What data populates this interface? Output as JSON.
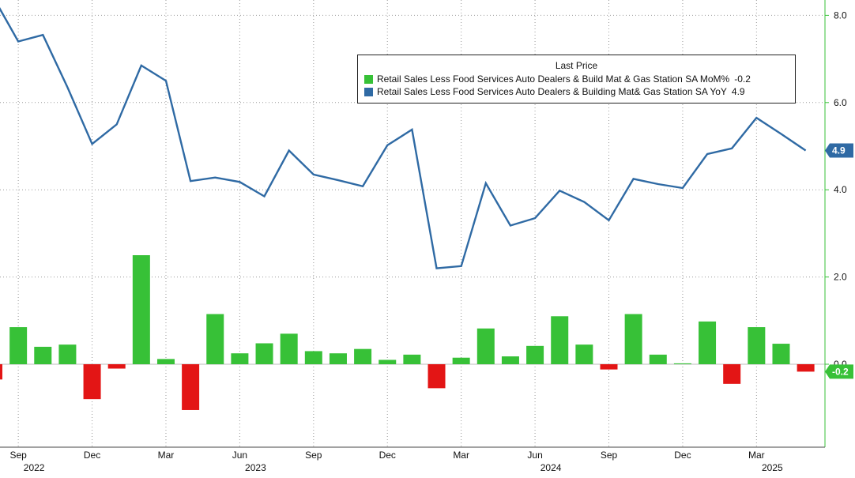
{
  "chart_data": {
    "type": "bar+line",
    "legend_title": "Last Price",
    "legend_placement": "top-right",
    "grid": "dotted",
    "ylim": [
      -1.8,
      8.3
    ],
    "yticks": [
      "8.0",
      "6.0",
      "4.0",
      "2.0",
      "0.0"
    ],
    "ytick_values": [
      8,
      6,
      4,
      2,
      0
    ],
    "x_month_ticks": [
      {
        "index": 1,
        "label": "Sep"
      },
      {
        "index": 4,
        "label": "Dec"
      },
      {
        "index": 7,
        "label": "Mar"
      },
      {
        "index": 10,
        "label": "Jun"
      },
      {
        "index": 13,
        "label": "Sep"
      },
      {
        "index": 16,
        "label": "Dec"
      },
      {
        "index": 19,
        "label": "Mar"
      },
      {
        "index": 22,
        "label": "Jun"
      },
      {
        "index": 25,
        "label": "Sep"
      },
      {
        "index": 28,
        "label": "Dec"
      },
      {
        "index": 31,
        "label": "Mar"
      }
    ],
    "x_year_ticks": [
      {
        "index": 1,
        "label": "2022"
      },
      {
        "index": 10,
        "label": "2023"
      },
      {
        "index": 22,
        "label": "2024"
      },
      {
        "index": 31,
        "label": "2025"
      }
    ],
    "series": [
      {
        "name": "Retail Sales Less Food Services Auto Dealers & Build Mat & Gas Station SA MoM%",
        "kind": "bar",
        "last_value": "-0.2",
        "color": "#37c137",
        "neg_color": "#e31515",
        "values": [
          -0.35,
          0.85,
          0.4,
          0.45,
          -0.8,
          -0.1,
          2.5,
          0.12,
          -1.05,
          1.15,
          0.25,
          0.48,
          0.7,
          0.3,
          0.25,
          0.35,
          0.1,
          0.22,
          -0.55,
          0.15,
          0.82,
          0.18,
          0.42,
          1.1,
          0.45,
          -0.12,
          1.15,
          0.22,
          0.02,
          0.98,
          -0.45,
          0.85,
          0.47,
          -0.17
        ]
      },
      {
        "name": "Retail Sales Less Food Services Auto Dealers & Building Mat& Gas Station SA YoY",
        "kind": "line",
        "last_value": "4.9",
        "color": "#2f6aa4",
        "values": [
          8.4,
          7.4,
          7.55,
          6.35,
          5.05,
          5.5,
          6.85,
          6.5,
          4.2,
          4.28,
          4.18,
          3.85,
          4.9,
          4.35,
          4.22,
          4.08,
          5.02,
          5.38,
          2.2,
          2.25,
          4.15,
          3.18,
          3.35,
          3.98,
          3.72,
          3.3,
          4.25,
          4.13,
          4.04,
          4.82,
          4.95,
          5.65,
          5.28,
          4.9
        ]
      }
    ]
  }
}
